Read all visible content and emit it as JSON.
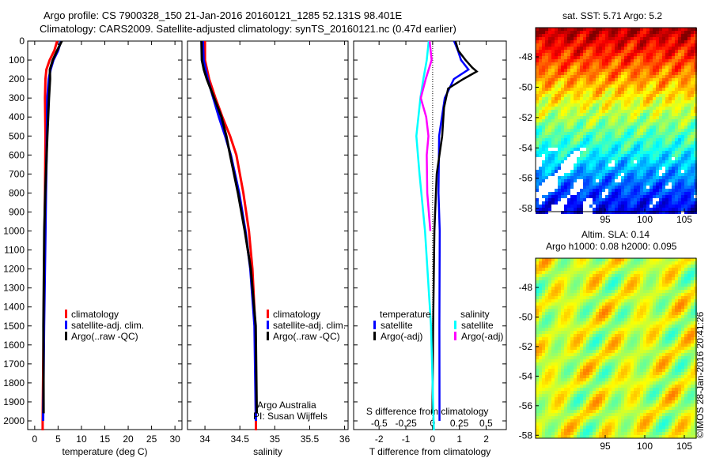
{
  "title_line1": "Argo profile: CS 7900328_150 21-Jan-2016 20160121_1285 52.131S 98.401E",
  "title_line2": "Climatology: CARS2009. Satellite-adjusted climatology: synTS_20160121.nc (0.47d earlier)",
  "sst_title": "sat. SST: 5.71 Argo: 5.2",
  "sla_title1": "Altim. SLA: 0.14",
  "sla_title2": "Argo h1000: 0.08 h2000: 0.095",
  "credit": "©IMOS 28-Jan-2016 20:41:26",
  "colors": {
    "climatology": "#ff0000",
    "satellite": "#0000ff",
    "argo": "#000000",
    "sal_sat": "#00ffff",
    "sal_argo": "#ff00ff"
  },
  "chart_data": [
    {
      "type": "line",
      "xlabel": "temperature (deg C)",
      "ylabel": "",
      "xlim": [
        -1.5,
        31.5
      ],
      "ylim": [
        2050,
        0
      ],
      "xticks": [
        "0",
        "5",
        "10",
        "15",
        "20",
        "25",
        "30"
      ],
      "yticks": [
        "0",
        "100",
        "200",
        "300",
        "400",
        "500",
        "600",
        "700",
        "800",
        "900",
        "1000",
        "1100",
        "1200",
        "1300",
        "1400",
        "1500",
        "1600",
        "1700",
        "1800",
        "1900",
        "2000"
      ],
      "legend": [
        "climatology",
        "satellite-adj. clim.",
        "Argo(..raw -QC)"
      ],
      "series": [
        {
          "name": "climatology",
          "depth": [
            0,
            50,
            100,
            150,
            200,
            300,
            500,
            800,
            1000,
            1500,
            2000,
            2050
          ],
          "values": [
            4.8,
            4.2,
            3.2,
            2.5,
            2.3,
            2.2,
            2.3,
            2.2,
            2.1,
            1.9,
            1.7,
            1.7
          ]
        },
        {
          "name": "satellite-adj. clim.",
          "depth": [
            0,
            50,
            100,
            150,
            200,
            300,
            500,
            800,
            1000,
            1500,
            2000
          ],
          "values": [
            5.6,
            5.0,
            4.0,
            3.4,
            3.0,
            2.7,
            2.6,
            2.4,
            2.3,
            2.0,
            1.8
          ]
        },
        {
          "name": "Argo(..raw -QC)",
          "depth": [
            0,
            50,
            100,
            150,
            200,
            300,
            500,
            800,
            1000,
            1500,
            1960
          ],
          "values": [
            5.8,
            5.0,
            4.1,
            3.3,
            3.1,
            2.8,
            2.6,
            2.4,
            2.3,
            2.0,
            1.8
          ]
        }
      ]
    },
    {
      "type": "line",
      "xlabel": "salinity",
      "xlim": [
        33.75,
        36.05
      ],
      "ylim": [
        2050,
        0
      ],
      "xticks": [
        "34",
        "34.5",
        "35",
        "35.5",
        "36"
      ],
      "legend": [
        "climatology",
        "satellite-adj. clim.",
        "Argo(..raw -QC)"
      ],
      "annotation": [
        "Argo Australia",
        "PI: Susan Wijffels"
      ],
      "series": [
        {
          "name": "climatology",
          "depth": [
            0,
            100,
            200,
            300,
            400,
            500,
            600,
            800,
            1000,
            1200,
            1500,
            2000,
            2050
          ],
          "values": [
            34.0,
            34.0,
            34.06,
            34.15,
            34.25,
            34.36,
            34.45,
            34.55,
            34.63,
            34.68,
            34.72,
            34.73,
            34.73
          ]
        },
        {
          "name": "satellite-adj. clim.",
          "depth": [
            0,
            100,
            200,
            300,
            400,
            500,
            600,
            800,
            1000,
            1200,
            1500,
            2000
          ],
          "values": [
            33.97,
            33.98,
            34.04,
            34.12,
            34.2,
            34.29,
            34.37,
            34.49,
            34.58,
            34.65,
            34.71,
            34.73
          ]
        },
        {
          "name": "Argo(..raw -QC)",
          "depth": [
            0,
            100,
            150,
            200,
            300,
            400,
            500,
            600,
            800,
            1000,
            1200,
            1500,
            1960
          ],
          "values": [
            33.95,
            33.97,
            34.0,
            34.03,
            34.12,
            34.22,
            34.3,
            34.37,
            34.49,
            34.58,
            34.65,
            34.71,
            34.73
          ]
        }
      ]
    },
    {
      "type": "line",
      "xlabel": "T difference from climatology",
      "x2label": "S difference from climatology",
      "xlim": [
        -2.95,
        2.75
      ],
      "x2lim": [
        -0.74,
        0.69
      ],
      "ylim": [
        2050,
        0
      ],
      "xticks": [
        "-2",
        "-1",
        "0",
        "1",
        "2"
      ],
      "x2ticks": [
        "-0.5",
        "-0.25",
        "0",
        "0.25",
        "0.5"
      ],
      "legend": {
        "temperature": "temperature",
        "salinity": "salinity",
        "t_sat": "satellite",
        "t_argo": "Argo(-adj)",
        "s_sat": "satellite",
        "s_argo": "Argo(-adj)"
      },
      "series": [
        {
          "name": "T satellite",
          "units": "T",
          "depth": [
            0,
            50,
            100,
            150,
            200,
            300,
            500,
            800,
            1000,
            1500,
            2000
          ],
          "values": [
            0.8,
            0.9,
            1.0,
            1.3,
            0.8,
            0.5,
            0.3,
            0.25,
            0.25,
            0.2,
            0.2
          ]
        },
        {
          "name": "T Argo(-adj)",
          "units": "T",
          "depth": [
            0,
            50,
            100,
            140,
            160,
            200,
            250,
            350,
            500,
            700,
            1000,
            1500,
            1960
          ],
          "values": [
            0.8,
            0.9,
            1.2,
            1.5,
            1.7,
            1.2,
            0.6,
            0.4,
            0.3,
            0.1,
            0.05,
            0.05,
            0.05
          ]
        },
        {
          "name": "S satellite",
          "units": "S",
          "depth": [
            0,
            100,
            200,
            300,
            500,
            700,
            1000,
            1500,
            2050
          ],
          "values": [
            -0.05,
            -0.06,
            -0.08,
            -0.1,
            -0.14,
            -0.12,
            -0.08,
            -0.03,
            0.0
          ]
        },
        {
          "name": "S Argo(-adj)",
          "units": "S",
          "depth": [
            0,
            100,
            200,
            300,
            400,
            500,
            600,
            800,
            1000
          ],
          "values": [
            -0.03,
            0.0,
            -0.05,
            -0.1,
            -0.06,
            -0.05,
            -0.07,
            -0.06,
            -0.02
          ]
        }
      ]
    },
    {
      "type": "heatmap",
      "title": "sat. SST: 5.71 Argo: 5.2",
      "xticks": [
        "95",
        "100",
        "105"
      ],
      "yticks": [
        "-48",
        "-50",
        "-52",
        "-54",
        "-56",
        "-58"
      ]
    },
    {
      "type": "heatmap",
      "title": "Altim. SLA: 0.14",
      "xticks": [
        "95",
        "100",
        "105"
      ],
      "yticks": [
        "-48",
        "-50",
        "-52",
        "-54",
        "-56",
        "-58"
      ]
    }
  ]
}
